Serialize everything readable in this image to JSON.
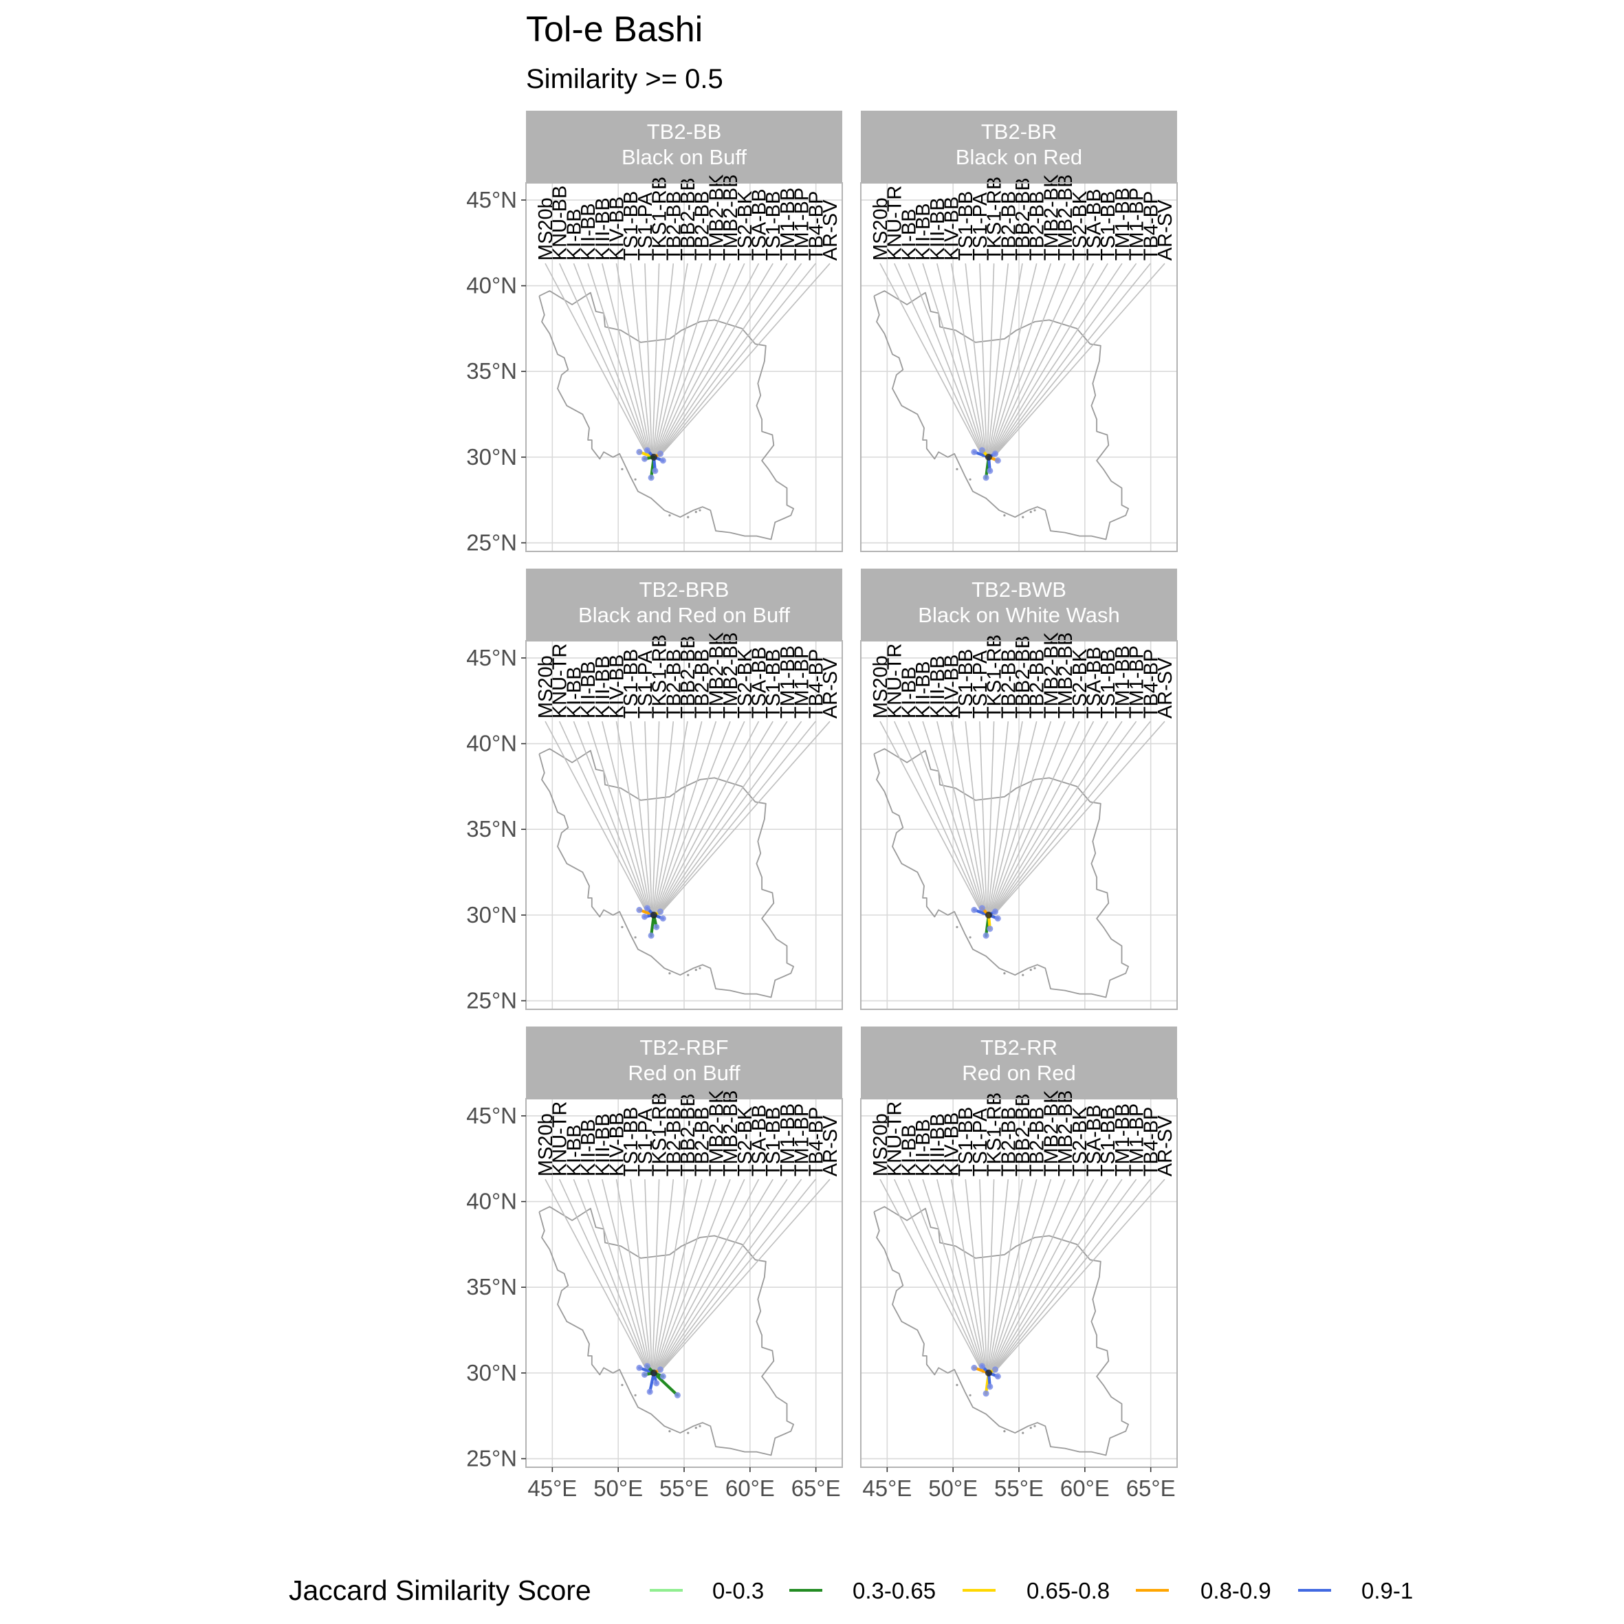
{
  "title": "Tol-e Bashi",
  "subtitle": "Similarity >= 0.5",
  "chart_data": {
    "type": "scatter",
    "map_region": "Iran",
    "x_unit": "longitude (°E)",
    "y_unit": "latitude (°N)",
    "xlim": [
      43,
      67
    ],
    "ylim": [
      24.5,
      46
    ],
    "x_ticks": [
      45,
      50,
      55,
      60,
      65
    ],
    "y_ticks": [
      25,
      30,
      35,
      40,
      45
    ],
    "x_tick_labels": [
      "45°E",
      "50°E",
      "55°E",
      "60°E",
      "65°E"
    ],
    "y_tick_labels": [
      "25°N",
      "30°N",
      "35°N",
      "40°N",
      "45°N"
    ],
    "grid": true,
    "focus_site": {
      "name": "Tol-e Bashi",
      "lon": 52.7,
      "lat": 30.0
    },
    "panels": [
      {
        "code": "TB2-BB",
        "name": "Black on Buff",
        "site_labels": [
          "MS20b",
          "KNU-BB",
          "KI-BB",
          "KII-BB",
          "KIII-BB",
          "KIV-BB",
          "TS1-BB",
          "TS1-PA",
          "TKS1-RB",
          "TB2-BB",
          "TBB2-BB",
          "TB2-BB",
          "TMB2-BK",
          "TMB2-BB",
          "TS2-BK",
          "TSA-BB",
          "TS1-BB",
          "TM1-BB",
          "TM1-BP",
          "TB4-BP",
          "AR-SV"
        ],
        "connections": [
          {
            "lon": 51.6,
            "lat": 30.3,
            "score": "0.65-0.8"
          },
          {
            "lon": 52.2,
            "lat": 30.4,
            "score": "0.9-1"
          },
          {
            "lon": 53.2,
            "lat": 30.2,
            "score": "0.8-0.9"
          },
          {
            "lon": 53.4,
            "lat": 29.8,
            "score": "0.9-1"
          },
          {
            "lon": 52.5,
            "lat": 28.8,
            "score": "0.3-0.65"
          },
          {
            "lon": 52.8,
            "lat": 29.2,
            "score": "0.9-1"
          },
          {
            "lon": 52.0,
            "lat": 29.9,
            "score": "0.3-0.65"
          }
        ]
      },
      {
        "code": "TB2-BR",
        "name": "Black on Red",
        "site_labels": [
          "MS20b",
          "KNU-TR",
          "KI-BB",
          "KII-BB",
          "KIII-BB",
          "KIV-BB",
          "TS1-BB",
          "TS1-PA",
          "TKS1-RB",
          "TB2-BB",
          "TBB2-BB",
          "TB2-BB",
          "TMB2-BK",
          "TMB2-BB",
          "TS2-BK",
          "TSA-BB",
          "TS1-BB",
          "TM1-BB",
          "TM1-BP",
          "TB4-BP",
          "AR-SV"
        ],
        "connections": [
          {
            "lon": 51.6,
            "lat": 30.3,
            "score": "0.9-1"
          },
          {
            "lon": 52.2,
            "lat": 30.4,
            "score": "0.65-0.8"
          },
          {
            "lon": 53.2,
            "lat": 30.2,
            "score": "0.9-1"
          },
          {
            "lon": 53.4,
            "lat": 29.8,
            "score": "0.8-0.9"
          },
          {
            "lon": 52.5,
            "lat": 28.8,
            "score": "0.3-0.65"
          },
          {
            "lon": 52.8,
            "lat": 29.2,
            "score": "0.9-1"
          }
        ]
      },
      {
        "code": "TB2-BRB",
        "name": "Black and Red on Buff",
        "site_labels": [
          "MS20b",
          "KNU-TR",
          "KI-BB",
          "KII-BB",
          "KIII-BB",
          "KIV-BB",
          "TS1-BB",
          "TS1-PA",
          "TKS1-RB",
          "TB2-BB",
          "TBB2-BB",
          "TB2-BB",
          "TMB2-BK",
          "TMB2-BB",
          "TS2-BK",
          "TSA-BB",
          "TS1-BB",
          "TM1-BB",
          "TM1-BP",
          "TB4-BP",
          "AR-SV"
        ],
        "connections": [
          {
            "lon": 51.6,
            "lat": 30.3,
            "score": "0.8-0.9"
          },
          {
            "lon": 52.2,
            "lat": 30.4,
            "score": "0.9-1"
          },
          {
            "lon": 53.2,
            "lat": 30.2,
            "score": "0.65-0.8"
          },
          {
            "lon": 53.4,
            "lat": 29.8,
            "score": "0.9-1"
          },
          {
            "lon": 52.5,
            "lat": 28.8,
            "score": "0.3-0.65"
          },
          {
            "lon": 52.9,
            "lat": 29.3,
            "score": "0.3-0.65"
          },
          {
            "lon": 52.0,
            "lat": 29.9,
            "score": "0.9-1"
          }
        ]
      },
      {
        "code": "TB2-BWB",
        "name": "Black on White Wash",
        "site_labels": [
          "MS20b",
          "KNU-TR",
          "KI-BB",
          "KII-BB",
          "KIII-BB",
          "KIV-BB",
          "TS1-BB",
          "TS1-PA",
          "TKS1-RB",
          "TB2-BB",
          "TBB2-BB",
          "TB2-BB",
          "TMB2-BK",
          "TMB2-BB",
          "TS2-BK",
          "TSA-BB",
          "TS1-BB",
          "TM1-BB",
          "TM1-BP",
          "TB4-BP",
          "AR-SV"
        ],
        "connections": [
          {
            "lon": 51.6,
            "lat": 30.3,
            "score": "0.9-1"
          },
          {
            "lon": 52.2,
            "lat": 30.4,
            "score": "0.8-0.9"
          },
          {
            "lon": 53.2,
            "lat": 30.2,
            "score": "0.9-1"
          },
          {
            "lon": 53.4,
            "lat": 29.8,
            "score": "0.9-1"
          },
          {
            "lon": 52.5,
            "lat": 28.8,
            "score": "0.3-0.65"
          },
          {
            "lon": 52.8,
            "lat": 29.2,
            "score": "0.65-0.8"
          }
        ]
      },
      {
        "code": "TB2-RBF",
        "name": "Red on Buff",
        "site_labels": [
          "MS20b",
          "KNU-TR",
          "KI-BB",
          "KII-BB",
          "KIII-BB",
          "KIV-BB",
          "TS1-BB",
          "TS1-PA",
          "TKS1-RB",
          "TB2-BB",
          "TBB2-BB",
          "TB2-BB",
          "TMB2-BK",
          "TMB2-BB",
          "TS2-BK",
          "TSA-BB",
          "TS1-BB",
          "TM1-BB",
          "TM1-BP",
          "TB4-BP",
          "AR-SV"
        ],
        "connections": [
          {
            "lon": 51.6,
            "lat": 30.3,
            "score": "0.9-1"
          },
          {
            "lon": 52.2,
            "lat": 30.4,
            "score": "0.3-0.65"
          },
          {
            "lon": 53.2,
            "lat": 30.2,
            "score": "0.8-0.9"
          },
          {
            "lon": 53.4,
            "lat": 29.8,
            "score": "0.3-0.65"
          },
          {
            "lon": 52.4,
            "lat": 28.9,
            "score": "0.9-1"
          },
          {
            "lon": 54.5,
            "lat": 28.7,
            "score": "0.3-0.65"
          },
          {
            "lon": 52.0,
            "lat": 29.9,
            "score": "0.3-0.65"
          },
          {
            "lon": 52.9,
            "lat": 29.4,
            "score": "0.9-1"
          }
        ]
      },
      {
        "code": "TB2-RR",
        "name": "Red on Red",
        "site_labels": [
          "MS20b",
          "KNU-TR",
          "KI-BB",
          "KII-BB",
          "KIII-BB",
          "KIV-BB",
          "TS1-BB",
          "TS1-PA",
          "TKS1-RB",
          "TB2-BB",
          "TBB2-BB",
          "TB2-BB",
          "TMB2-BK",
          "TMB2-BB",
          "TS2-BK",
          "TSA-BB",
          "TS1-BB",
          "TM1-BB",
          "TM1-BP",
          "TB4-BP",
          "AR-SV"
        ],
        "connections": [
          {
            "lon": 51.6,
            "lat": 30.3,
            "score": "0.8-0.9"
          },
          {
            "lon": 52.2,
            "lat": 30.4,
            "score": "0.9-1"
          },
          {
            "lon": 53.2,
            "lat": 30.2,
            "score": "0.65-0.8"
          },
          {
            "lon": 53.4,
            "lat": 29.8,
            "score": "0.9-1"
          },
          {
            "lon": 52.5,
            "lat": 28.8,
            "score": "0.65-0.8"
          },
          {
            "lon": 52.8,
            "lat": 29.2,
            "score": "0.9-1"
          }
        ]
      }
    ],
    "legend": {
      "title": "Jaccard Similarity Score",
      "position": "bottom",
      "items": [
        {
          "label": "0-0.3",
          "color": "#90ee90"
        },
        {
          "label": "0.3-0.65",
          "color": "#228b22"
        },
        {
          "label": "0.65-0.8",
          "color": "#ffd700"
        },
        {
          "label": "0.8-0.9",
          "color": "#ffa500"
        },
        {
          "label": "0.9-1",
          "color": "#4169e1"
        }
      ]
    }
  }
}
